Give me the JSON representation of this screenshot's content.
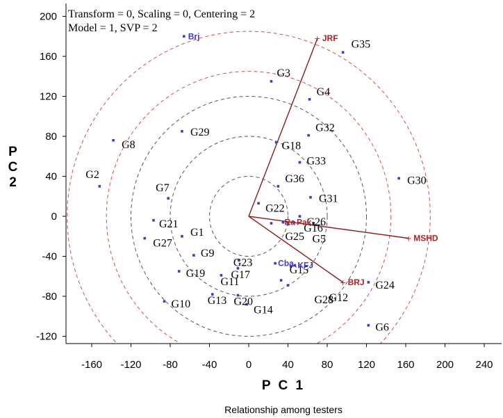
{
  "chart_data": {
    "type": "scatter",
    "header": [
      "Transform = 0, Scaling = 0, Centering = 2",
      "Model = 1, SVP = 2"
    ],
    "xlabel": "P C 1",
    "ylabel": "P C 2",
    "caption": "Relationship among testers",
    "xlim": [
      -180,
      245
    ],
    "ylim": [
      -132,
      205
    ],
    "xticks": [
      -160,
      -120,
      -80,
      -40,
      0,
      40,
      80,
      120,
      160,
      200,
      240
    ],
    "yticks": [
      -120,
      -80,
      -40,
      0,
      40,
      80,
      120,
      160,
      200
    ],
    "colors": {
      "point": "#3b3bd4",
      "vector": "#8b1a1a",
      "circle_outer": "#d94b4b",
      "circle_inner": "#555555"
    },
    "circles": [
      {
        "r": 40,
        "color": "#555555"
      },
      {
        "r": 80,
        "color": "#555555"
      },
      {
        "r": 120,
        "color": "#555555"
      },
      {
        "r": 145,
        "color": "#d94b4b"
      },
      {
        "r": 185,
        "color": "#d94b4b"
      }
    ],
    "vectors": [
      {
        "name": "JRF",
        "x": 70,
        "y": 178,
        "color": "#b22222"
      },
      {
        "name": "MSHD",
        "x": 163,
        "y": -22,
        "color": "#b22222"
      },
      {
        "name": "BRJ",
        "x": 96,
        "y": -66,
        "color": "#b22222"
      }
    ],
    "tester_points": [
      {
        "name": "Brj",
        "x": -66,
        "y": 180,
        "color": "#3b3bd4"
      },
      {
        "name": "Cba",
        "x": 27,
        "y": -47,
        "color": "#3b3bd4"
      },
      {
        "name": "KFJ",
        "x": 47,
        "y": -49,
        "color": "#3b3bd4"
      },
      {
        "name": "Pak",
        "x": 46,
        "y": -6,
        "color": "#b22222"
      },
      {
        "name": "Ra",
        "x": 35,
        "y": -6,
        "color": "#b22222"
      }
    ],
    "points": [
      {
        "name": "G1",
        "x": -68,
        "y": -20
      },
      {
        "name": "G2",
        "x": -152,
        "y": 30
      },
      {
        "name": "G3",
        "x": 23,
        "y": 135
      },
      {
        "name": "G4",
        "x": 62,
        "y": 117
      },
      {
        "name": "G5",
        "x": 40,
        "y": -8
      },
      {
        "name": "G6",
        "x": 122,
        "y": -109
      },
      {
        "name": "G7",
        "x": -82,
        "y": 18
      },
      {
        "name": "G8",
        "x": -138,
        "y": 76
      },
      {
        "name": "G9",
        "x": -56,
        "y": -39
      },
      {
        "name": "G10",
        "x": -86,
        "y": -85
      },
      {
        "name": "G11",
        "x": -28,
        "y": -59
      },
      {
        "name": "G12",
        "x": 33,
        "y": -64
      },
      {
        "name": "G13",
        "x": -37,
        "y": -78
      },
      {
        "name": "G14",
        "x": -2,
        "y": -88
      },
      {
        "name": "G15",
        "x": 43,
        "y": -50
      },
      {
        "name": "G16",
        "x": 66,
        "y": -7
      },
      {
        "name": "G17",
        "x": -11,
        "y": -52
      },
      {
        "name": "G18",
        "x": 28,
        "y": 74
      },
      {
        "name": "G19",
        "x": -71,
        "y": -55
      },
      {
        "name": "G20",
        "x": -11,
        "y": -79
      },
      {
        "name": "G21",
        "x": -97,
        "y": -4
      },
      {
        "name": "G22",
        "x": 10,
        "y": 13
      },
      {
        "name": "G23",
        "x": -10,
        "y": -44
      },
      {
        "name": "G24",
        "x": 122,
        "y": -66
      },
      {
        "name": "G25",
        "x": 23,
        "y": -7
      },
      {
        "name": "G26",
        "x": 52,
        "y": 0
      },
      {
        "name": "G27",
        "x": -106,
        "y": -22
      },
      {
        "name": "G28",
        "x": 40,
        "y": -69
      },
      {
        "name": "G29",
        "x": -68,
        "y": 85
      },
      {
        "name": "G30",
        "x": 153,
        "y": 38
      },
      {
        "name": "G31",
        "x": 63,
        "y": 19
      },
      {
        "name": "G32",
        "x": 61,
        "y": 81
      },
      {
        "name": "G33",
        "x": 52,
        "y": 54
      },
      {
        "name": "G35",
        "x": 96,
        "y": 164
      },
      {
        "name": "G36",
        "x": 30,
        "y": 30
      }
    ]
  }
}
